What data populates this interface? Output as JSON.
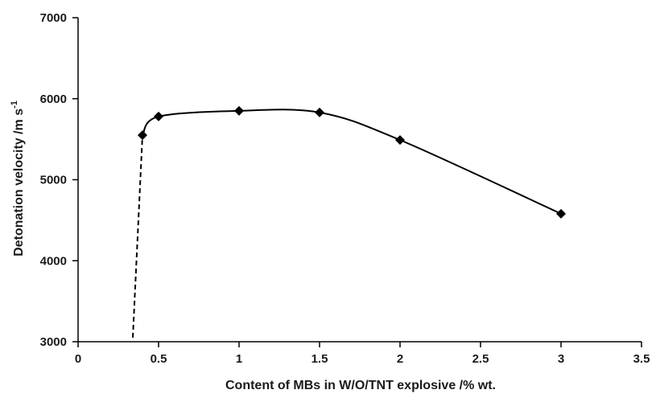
{
  "chart_data": {
    "type": "line",
    "xlabel": "Content of MBs in W/O/TNT explosive /% wt.",
    "ylabel": {
      "main": "Detonation velocity /m s",
      "superscript": "-1"
    },
    "xlim": [
      0,
      3.5
    ],
    "ylim": [
      3000,
      7000
    ],
    "x_ticks": [
      "0",
      "0.5",
      "1",
      "1.5",
      "2",
      "2.5",
      "3",
      "3.5"
    ],
    "y_ticks": [
      "3000",
      "4000",
      "5000",
      "6000",
      "7000"
    ],
    "grid": false,
    "legend": "none",
    "series": [
      {
        "marker": "diamond",
        "line": "smooth-solid",
        "color": "#000000",
        "points": [
          {
            "x": 0.4,
            "y": 5550
          },
          {
            "x": 0.5,
            "y": 5780
          },
          {
            "x": 1.0,
            "y": 5850
          },
          {
            "x": 1.5,
            "y": 5830
          },
          {
            "x": 2.0,
            "y": 5490
          },
          {
            "x": 3.0,
            "y": 4580
          }
        ]
      }
    ],
    "extrapolation": {
      "line": "dashed",
      "color": "#000000",
      "points": [
        {
          "x": 0.34,
          "y": 3050
        },
        {
          "x": 0.4,
          "y": 5550
        }
      ]
    }
  }
}
